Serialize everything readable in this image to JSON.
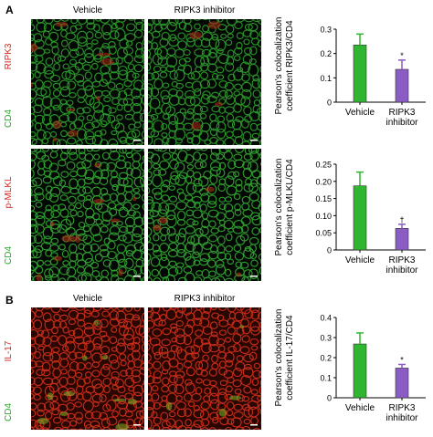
{
  "panels": [
    {
      "letter": "A"
    },
    {
      "letter": "B"
    }
  ],
  "columns": [
    "Vehicle",
    "RIPK3 inhibitor"
  ],
  "image_rows": [
    {
      "stain_red": "RIPK3",
      "stain_green": "CD4",
      "bg": "#040804",
      "net": "#2fa62f",
      "accent": "#b02818"
    },
    {
      "stain_red": "p-MLKL",
      "stain_green": "CD4",
      "bg": "#040804",
      "net": "#35b035",
      "accent": "#b83018"
    },
    {
      "stain_red": "IL-17",
      "stain_green": "CD4",
      "bg": "#2a0602",
      "net": "#d8321c",
      "accent": "#7fb02a"
    }
  ],
  "colors": {
    "vehicle_bar": "#2fb52f",
    "inhibitor_bar": "#8a5cc4",
    "stain_red": "#d8261e",
    "stain_green": "#2ea52e"
  },
  "chart_data": [
    {
      "type": "bar",
      "categories": [
        "Vehicle",
        "RIPK3\ninhibitor"
      ],
      "values": [
        0.235,
        0.135
      ],
      "errors": [
        0.045,
        0.038
      ],
      "significance": [
        "",
        "*"
      ],
      "ylabel": "Pearson's colocalization\ncoefficient RIPK3/CD4",
      "ylim": [
        0,
        0.3
      ],
      "yticks": [
        "0",
        "0.1",
        "0.2",
        "0.3"
      ]
    },
    {
      "type": "bar",
      "categories": [
        "Vehicle",
        "RIPK3\ninhibitor"
      ],
      "values": [
        0.187,
        0.063
      ],
      "errors": [
        0.04,
        0.012
      ],
      "significance": [
        "",
        "†"
      ],
      "ylabel": "Pearson's colocalization\ncoefficient p-MLKL/CD4",
      "ylim": [
        0,
        0.25
      ],
      "yticks": [
        "0",
        "0.05",
        "0.10",
        "0.15",
        "0.20",
        "0.25"
      ]
    },
    {
      "type": "bar",
      "categories": [
        "Vehicle",
        "RIPK3\ninhibitor"
      ],
      "values": [
        0.268,
        0.148
      ],
      "errors": [
        0.055,
        0.018
      ],
      "significance": [
        "",
        "*"
      ],
      "ylabel": "Pearson's colocalization\ncoefficient IL-17/CD4",
      "ylim": [
        0,
        0.4
      ],
      "yticks": [
        "0",
        "0.1",
        "0.2",
        "0.3",
        "0.4"
      ]
    }
  ]
}
